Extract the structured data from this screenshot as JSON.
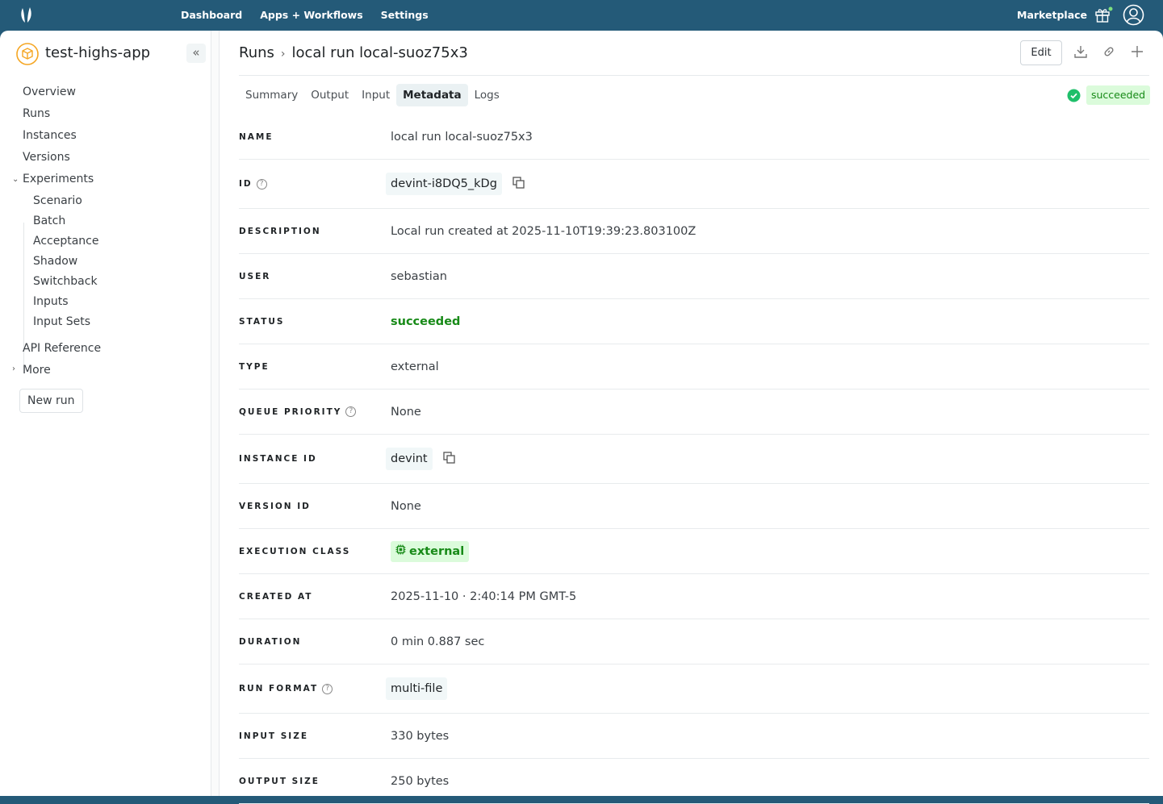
{
  "topnav": {
    "items": [
      "Dashboard",
      "Apps + Workflows",
      "Settings"
    ],
    "marketplace": "Marketplace"
  },
  "sidebar": {
    "app_name": "test-highs-app",
    "items": [
      "Overview",
      "Runs",
      "Instances",
      "Versions"
    ],
    "experiments": "Experiments",
    "sub_items": [
      "Scenario",
      "Batch",
      "Acceptance",
      "Shadow",
      "Switchback",
      "Inputs",
      "Input Sets"
    ],
    "api_reference": "API Reference",
    "more": "More",
    "new_run": "New run"
  },
  "header": {
    "crumb_root": "Runs",
    "crumb_current": "local run local-suoz75x3",
    "edit": "Edit"
  },
  "tabs": [
    "Summary",
    "Output",
    "Input",
    "Metadata",
    "Logs"
  ],
  "active_tab": "Metadata",
  "status": "succeeded",
  "colors": {
    "brand": "#245a78",
    "success": "#178a17",
    "success_bg": "#dbfbdb",
    "app_icon": "#f5a623"
  },
  "metadata": [
    {
      "label": "NAME",
      "value": "local run local-suoz75x3",
      "kind": "text"
    },
    {
      "label": "ID",
      "value": "devint-i8DQ5_kDg",
      "kind": "pill",
      "help": true,
      "copy": true
    },
    {
      "label": "DESCRIPTION",
      "value": "Local run created at 2025-11-10T19:39:23.803100Z",
      "kind": "text"
    },
    {
      "label": "USER",
      "value": "sebastian",
      "kind": "text"
    },
    {
      "label": "STATUS",
      "value": "succeeded",
      "kind": "status"
    },
    {
      "label": "TYPE",
      "value": "external",
      "kind": "text"
    },
    {
      "label": "QUEUE PRIORITY",
      "value": "None",
      "kind": "text",
      "help": true
    },
    {
      "label": "INSTANCE ID",
      "value": "devint",
      "kind": "pill",
      "copy": true
    },
    {
      "label": "VERSION ID",
      "value": "None",
      "kind": "text"
    },
    {
      "label": "EXECUTION CLASS",
      "value": "external",
      "kind": "badge"
    },
    {
      "label": "CREATED AT",
      "value": "2025-11-10 · 2:40:14 PM GMT-5",
      "kind": "text"
    },
    {
      "label": "DURATION",
      "value": "0 min 0.887 sec",
      "kind": "text"
    },
    {
      "label": "RUN FORMAT",
      "value": "multi-file",
      "kind": "pill",
      "help": true
    },
    {
      "label": "INPUT SIZE",
      "value": "330 bytes",
      "kind": "text"
    },
    {
      "label": "OUTPUT SIZE",
      "value": "250 bytes",
      "kind": "text"
    }
  ]
}
